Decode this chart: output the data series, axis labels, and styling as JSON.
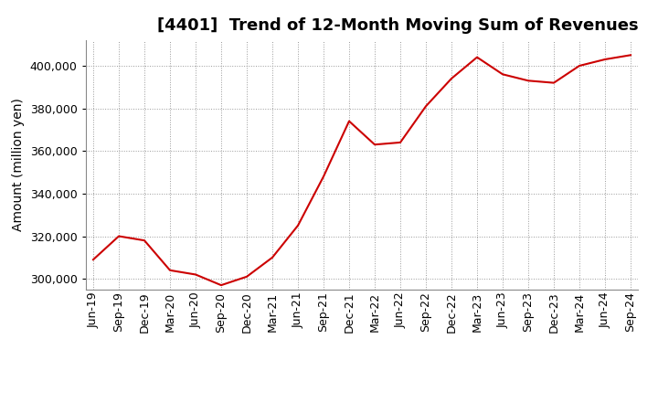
{
  "title": "[4401]  Trend of 12-Month Moving Sum of Revenues",
  "ylabel": "Amount (million yen)",
  "line_color": "#CC0000",
  "background_color": "#FFFFFF",
  "grid_color": "#999999",
  "x_labels": [
    "Jun-19",
    "Sep-19",
    "Dec-19",
    "Mar-20",
    "Jun-20",
    "Sep-20",
    "Dec-20",
    "Mar-21",
    "Jun-21",
    "Sep-21",
    "Dec-21",
    "Mar-22",
    "Jun-22",
    "Sep-22",
    "Dec-22",
    "Mar-23",
    "Jun-23",
    "Sep-23",
    "Dec-23",
    "Mar-24",
    "Jun-24",
    "Sep-24"
  ],
  "values": [
    309000,
    320000,
    318000,
    304000,
    302000,
    297000,
    301000,
    310000,
    325000,
    348000,
    374000,
    363000,
    364000,
    381000,
    394000,
    404000,
    396000,
    393000,
    392000,
    400000,
    403000,
    405000
  ],
  "ylim": [
    295000,
    412000
  ],
  "yticks": [
    300000,
    320000,
    340000,
    360000,
    380000,
    400000
  ],
  "title_fontsize": 13,
  "label_fontsize": 10,
  "tick_fontsize": 9
}
